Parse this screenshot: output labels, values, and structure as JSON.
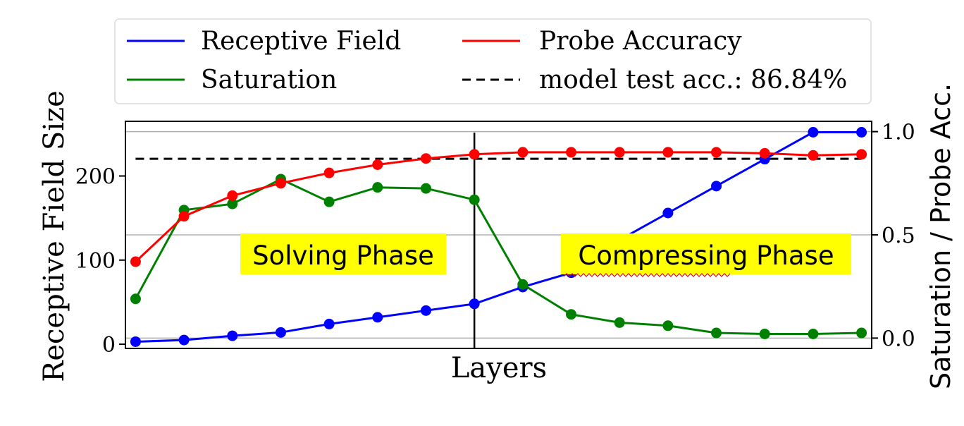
{
  "chart_data": {
    "type": "line",
    "xlabel": "Layers",
    "ylabel_left": "Receptive Field Size",
    "ylabel_right": "Saturation / Probe Acc.",
    "x": [
      1,
      2,
      3,
      4,
      5,
      6,
      7,
      8,
      9,
      10,
      11,
      12,
      13,
      14,
      15,
      16
    ],
    "ylim_left": [
      -5,
      265
    ],
    "ylim_right": [
      -0.05,
      1.05
    ],
    "yticks_left": [
      0,
      100,
      200
    ],
    "yticks_right": [
      "0.0",
      "0.5",
      "1.0"
    ],
    "series": [
      {
        "name": "Receptive Field",
        "axis": "left",
        "color": "#0000ff",
        "values": [
          3,
          5,
          10,
          14,
          24,
          32,
          40,
          48,
          68,
          85,
          124,
          156,
          188,
          220,
          252,
          252
        ]
      },
      {
        "name": "Saturation",
        "axis": "right",
        "color": "#008000",
        "values": [
          0.19,
          0.62,
          0.65,
          0.77,
          0.66,
          0.73,
          0.725,
          0.67,
          0.26,
          0.115,
          0.075,
          0.06,
          0.025,
          0.02,
          0.02,
          0.025
        ]
      },
      {
        "name": "Probe Accuracy",
        "axis": "right",
        "color": "#ff0000",
        "values": [
          0.37,
          0.59,
          0.69,
          0.75,
          0.8,
          0.84,
          0.87,
          0.89,
          0.9,
          0.9,
          0.9,
          0.9,
          0.9,
          0.895,
          0.885,
          0.89
        ]
      }
    ],
    "reference_line": {
      "name": "model test acc.: 86.84%",
      "axis": "right",
      "value": 0.8684,
      "style": "dashed",
      "color": "#000000"
    },
    "divider_x": 8,
    "legend": {
      "placement": "top",
      "entries": [
        "Receptive Field",
        "Probe Accuracy",
        "Saturation",
        "model test acc.: 86.84%"
      ]
    },
    "annotations": [
      {
        "text": "Solving Phase",
        "background": "#ffff00"
      },
      {
        "text": "Compressing Phase",
        "background": "#ffff00"
      }
    ]
  }
}
